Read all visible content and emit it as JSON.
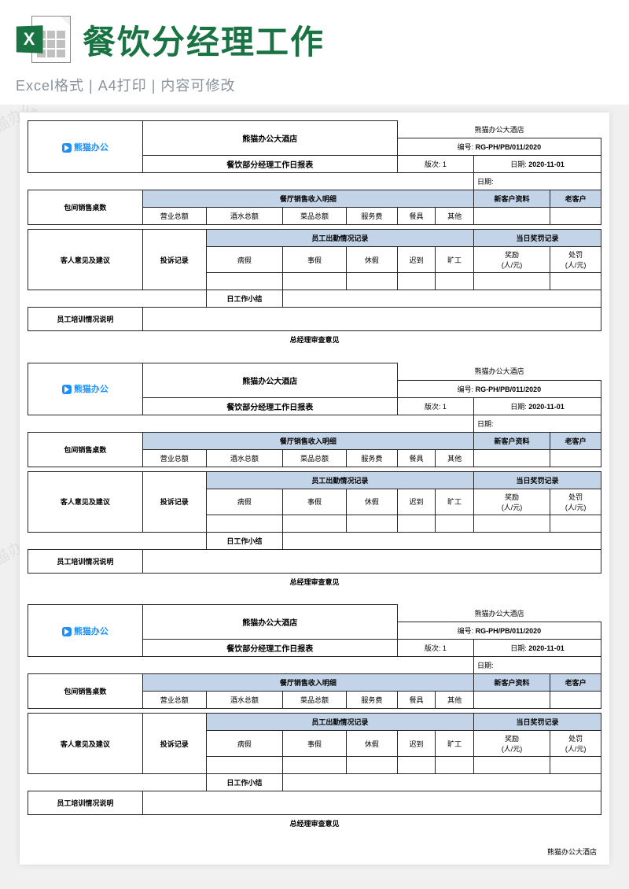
{
  "watermark_text": "熊猫办公 TUKUPPT.COM",
  "header": {
    "excel_letter": "X",
    "title": "餐饮分经理工作",
    "subtitle": "Excel格式 | A4打印 | 内容可修改"
  },
  "form": {
    "brand_logo": "熊猫办公",
    "hotel_name": "熊猫办公大酒店",
    "report_title": "餐饮部分经理工作日报表",
    "doc_no_label": "编号:",
    "doc_no": "RG-PH/PB/011/2020",
    "version_label": "版次:",
    "version": "1",
    "date_label": "日期:",
    "date": "2020-11-01",
    "date_empty_label": "日期:",
    "row_labels": {
      "room_sales": "包间销售桌数",
      "guest_opinion": "客人意见及建议",
      "staff_training": "员工培训情况说明",
      "gm_review": "总经理审查意见"
    },
    "sections": {
      "restaurant_income": "餐厅销售收入明细",
      "new_customers": "新客户资料",
      "old_customers": "老客户",
      "complaints": "投诉记录",
      "attendance": "员工出勤情况记录",
      "rewards": "当日奖罚记录",
      "daily_summary": "日工作小结"
    },
    "cols": {
      "business_total": "营业总额",
      "wine_total": "酒水总额",
      "dish_total": "菜品总额",
      "service_fee": "服务费",
      "tableware": "餐具",
      "other": "其他",
      "sick_leave": "病假",
      "personal_leave": "事假",
      "rest": "休假",
      "late": "迟到",
      "absent": "旷工",
      "reward": "奖励",
      "reward_unit": "(人/元)",
      "punish": "处罚",
      "punish_unit": "(人/元)"
    },
    "footer_hotel": "熊猫办公大酒店"
  }
}
